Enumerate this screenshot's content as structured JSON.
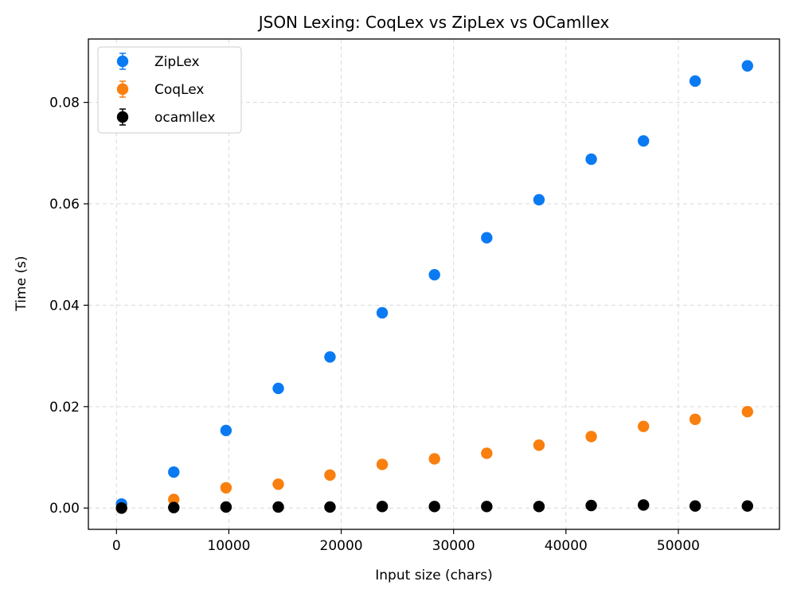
{
  "chart_data": {
    "type": "scatter",
    "title": "JSON Lexing: CoqLex vs ZipLex vs OCamllex",
    "xlabel": "Input size (chars)",
    "ylabel": "Time (s)",
    "xlim": [
      -2500,
      59000
    ],
    "ylim": [
      -0.0042,
      0.0925
    ],
    "xticks": [
      0,
      10000,
      20000,
      30000,
      40000,
      50000
    ],
    "xtick_labels": [
      "0",
      "10000",
      "20000",
      "30000",
      "40000",
      "50000"
    ],
    "yticks": [
      0.0,
      0.02,
      0.04,
      0.06,
      0.08
    ],
    "ytick_labels": [
      "0.00",
      "0.02",
      "0.04",
      "0.06",
      "0.08"
    ],
    "grid": true,
    "legend_position": "top-left",
    "x": [
      450,
      5100,
      9750,
      14400,
      19000,
      23650,
      28300,
      32950,
      37600,
      42250,
      46900,
      51500,
      56150
    ],
    "series": [
      {
        "name": "ZipLex",
        "color": "#0a7af3",
        "values": [
          0.0008,
          0.0071,
          0.0153,
          0.0236,
          0.0298,
          0.0385,
          0.046,
          0.0533,
          0.0608,
          0.0688,
          0.0724,
          0.0842,
          0.0872
        ]
      },
      {
        "name": "CoqLex",
        "color": "#f97f0e",
        "values": [
          0.0,
          0.0017,
          0.004,
          0.0047,
          0.0065,
          0.0086,
          0.0097,
          0.0108,
          0.0124,
          0.0141,
          0.0161,
          0.0175,
          0.019
        ]
      },
      {
        "name": "ocamllex",
        "color": "#000000",
        "values": [
          0.0,
          0.0001,
          0.0002,
          0.0002,
          0.0002,
          0.0003,
          0.0003,
          0.0003,
          0.0003,
          0.0005,
          0.0006,
          0.0004,
          0.0004
        ]
      }
    ]
  }
}
